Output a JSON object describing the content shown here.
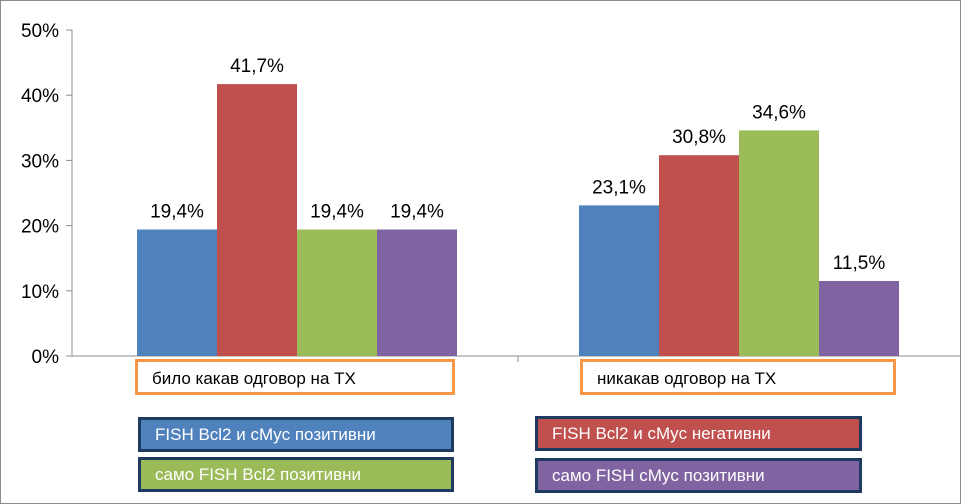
{
  "chart_data": {
    "type": "bar",
    "categories": [
      "било какав одговор на ТХ",
      "никакав одговор на ТХ"
    ],
    "series": [
      {
        "name": "FISH Bcl2 и cMyc позитивни",
        "color": "#4f81bd",
        "values": [
          19.4,
          23.1
        ],
        "labels": [
          "19,4%",
          "23,1%"
        ]
      },
      {
        "name": "FISH Bcl2 и cMyc негативни",
        "color": "#c0504d",
        "values": [
          41.7,
          30.8
        ],
        "labels": [
          "41,7%",
          "30,8%"
        ]
      },
      {
        "name": "само FISH Bcl2 позитивни",
        "color": "#9bbb59",
        "values": [
          19.4,
          34.6
        ],
        "labels": [
          "19,4%",
          "34,6%"
        ]
      },
      {
        "name": "само FISH cMyc позитивни",
        "color": "#8064a2",
        "values": [
          19.4,
          11.5
        ],
        "labels": [
          "19,4%",
          "11,5%"
        ]
      }
    ],
    "ylim": [
      0,
      50
    ],
    "yticks": [
      "0%",
      "10%",
      "20%",
      "30%",
      "40%",
      "50%"
    ],
    "grid": false,
    "legend_position": "bottom"
  }
}
